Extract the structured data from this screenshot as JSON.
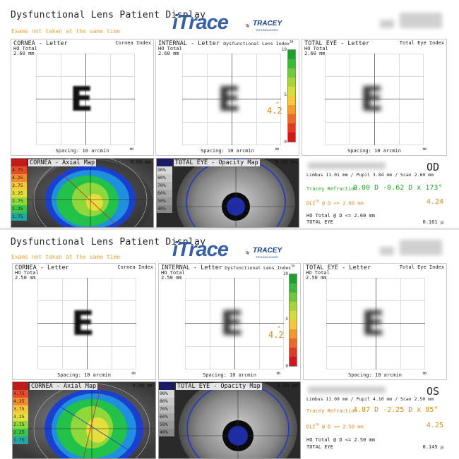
{
  "header": {
    "title": "Dysfunctional Lens Patient Display",
    "warning": "Exams not taken at the same time",
    "logo": {
      "main": "iTrace",
      "by": "by",
      "brand": "TRACEY",
      "brand_sub": "TECHNOLOGIES"
    }
  },
  "top": {
    "cornea": {
      "title": "CORNEA - Letter",
      "index": "Cornea Index",
      "sub1": "HO Total",
      "sub2": "2.60 mm",
      "spacing": "Spacing:  10 arcmin"
    },
    "internal": {
      "title": "INTERNAL - Letter",
      "index": "Dysfunctional Lens Index",
      "index_tm": "TM",
      "sub1": "HO Total",
      "sub2": "2.60 mm",
      "spacing": "Spacing:  10 arcmin",
      "scale_top": "10",
      "scale_mid": "5",
      "scale_bot": "0",
      "value": "4.2"
    },
    "total": {
      "title": "TOTAL EYE - Letter",
      "index": "Total Eye Index",
      "sub1": "HO Total",
      "sub2": "2.60 mm",
      "spacing": "Spacing:  10 arcmin"
    },
    "axial": {
      "title": "CORNEA - Axial Map",
      "zero": "0.00 mm",
      "legend": [
        "",
        "4.75",
        "4.25",
        "3.75",
        "3.25",
        "2.75",
        "2.25",
        "1.75"
      ]
    },
    "opacity": {
      "title": "TOTAL EYE - Opacity Map",
      "zero": "0.00 mm",
      "legend": [
        "",
        "90%",
        "80%",
        "70%",
        "60%",
        "50%",
        "40%"
      ]
    },
    "info": {
      "eye": "OD",
      "limbus": "Limbus 11.01 mm  /  Pupil 3.84 mm  /  Scan 2.60 mm",
      "refraction_label": "Tracey Refraction",
      "refraction_value": "0.00 D -0.62 D x 173°",
      "dli_label": "DLI",
      "dli_tm": "TM",
      "dli_cond": " @ D <= 2.60 mm",
      "dli_value": "4.24",
      "ho_label": "HO Total @ D <= 2.60 mm",
      "total_label": "TOTAL EYE",
      "total_value": "0.161 µ"
    }
  },
  "bottom": {
    "cornea": {
      "title": "CORNEA - Letter",
      "index": "Cornea Index",
      "sub1": "HO Total",
      "sub2": "2.50 mm",
      "spacing": "Spacing:  10 arcmin"
    },
    "internal": {
      "title": "INTERNAL - Letter",
      "index": "Dysfunctional Lens Index",
      "index_tm": "TM",
      "sub1": "HO Total",
      "sub2": "2.50 mm",
      "spacing": "Spacing:  10 arcmin",
      "scale_top": "10",
      "scale_mid": "5",
      "scale_bot": "0",
      "value": "4.2"
    },
    "total": {
      "title": "TOTAL EYE - Letter",
      "index": "Total Eye Index",
      "sub1": "HO Total",
      "sub2": "2.50 mm",
      "spacing": "Spacing:  10 arcmin"
    },
    "axial": {
      "title": "CORNEA - Axial Map",
      "zero": "0.00 mm",
      "legend": [
        "",
        "4.75",
        "4.25",
        "3.75",
        "3.25",
        "2.75",
        "2.25",
        "1.75"
      ]
    },
    "opacity": {
      "title": "TOTAL EYE - Opacity Map",
      "zero": "0.00 mm",
      "legend": [
        "",
        "90%",
        "80%",
        "70%",
        "60%",
        "50%",
        "40%"
      ]
    },
    "info": {
      "eye": "OS",
      "limbus": "Limbus 11.09 mm  /  Pupil 4.10 mm  /  Scan 2.50 mm",
      "refraction_label": "Tracey Refraction",
      "refraction_value": "4.87 D -2.25 D x 85°",
      "dli_label": "DLI",
      "dli_tm": "TM",
      "dli_cond": " @ D <= 2.50 mm",
      "dli_value": "4.25",
      "ho_label": "HO Total @ D <= 2.50 mm",
      "total_label": "TOTAL EYE",
      "total_value": "0.145 µ"
    }
  },
  "colors": {
    "logo_blue": "#3560a6",
    "orange": "#d08b1d",
    "green": "#2ba32b"
  }
}
